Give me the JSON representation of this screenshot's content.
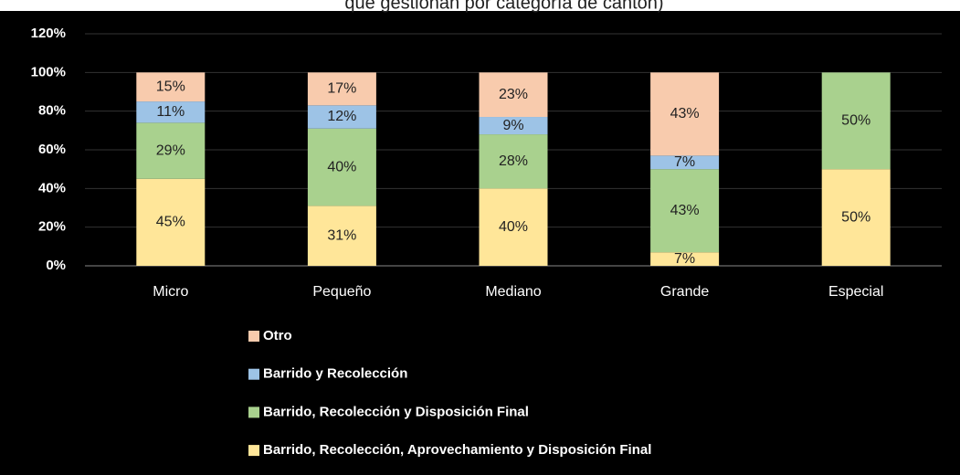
{
  "chart_data": {
    "type": "stacked_bar",
    "title": "que gestionan por categoría de cantón)",
    "categories": [
      "Micro",
      "Pequeño",
      "Mediano",
      "Grande",
      "Especial"
    ],
    "series": [
      {
        "name": "Barrido, Recolección, Aprovechamiento y Disposición Final",
        "color": "#FFE699",
        "values": [
          45,
          31,
          40,
          7,
          50
        ],
        "value_labels": [
          "45%",
          "31%",
          "40%",
          "7%",
          "50%"
        ]
      },
      {
        "name": "Barrido, Recolección y Disposición Final",
        "color": "#A9D18E",
        "values": [
          29,
          40,
          28,
          43,
          50
        ],
        "value_labels": [
          "29%",
          "40%",
          "28%",
          "43%",
          "50%"
        ]
      },
      {
        "name": "Barrido y Recolección",
        "color": "#9DC3E6",
        "values": [
          11,
          12,
          9,
          7,
          0
        ],
        "value_labels": [
          "11%",
          "12%",
          "9%",
          "7%",
          null
        ]
      },
      {
        "name": "Otro",
        "color": "#F8CBAD",
        "values": [
          15,
          17,
          23,
          43,
          0
        ],
        "value_labels": [
          "15%",
          "17%",
          "23%",
          "43%",
          null
        ]
      }
    ],
    "ylim": [
      0,
      120
    ],
    "yticks": [
      {
        "value": 0,
        "label": "0%"
      },
      {
        "value": 20,
        "label": "20%"
      },
      {
        "value": 40,
        "label": "40%"
      },
      {
        "value": 60,
        "label": "60%"
      },
      {
        "value": 80,
        "label": "80%"
      },
      {
        "value": 100,
        "label": "100%"
      },
      {
        "value": 120,
        "label": "120%"
      }
    ],
    "grid": true
  }
}
